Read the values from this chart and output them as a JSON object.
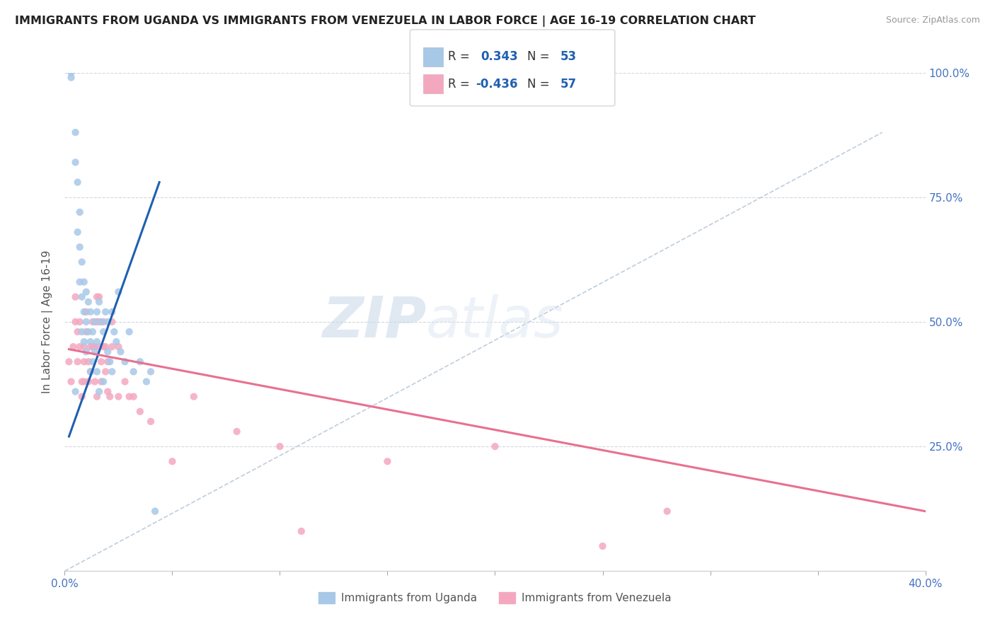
{
  "title": "IMMIGRANTS FROM UGANDA VS IMMIGRANTS FROM VENEZUELA IN LABOR FORCE | AGE 16-19 CORRELATION CHART",
  "source": "Source: ZipAtlas.com",
  "ylabel": "In Labor Force | Age 16-19",
  "xlim": [
    0.0,
    0.4
  ],
  "ylim": [
    0.0,
    1.0
  ],
  "uganda_R": 0.343,
  "uganda_N": 53,
  "venezuela_R": -0.436,
  "venezuela_N": 57,
  "uganda_color": "#a8c8e8",
  "venezuela_color": "#f4a8c0",
  "uganda_trend_color": "#2060b0",
  "venezuela_trend_color": "#e87090",
  "diagonal_color": "#b8c8d8",
  "watermark_zip": "ZIP",
  "watermark_atlas": "atlas",
  "uganda_x": [
    0.003,
    0.003,
    0.005,
    0.005,
    0.006,
    0.006,
    0.007,
    0.007,
    0.007,
    0.008,
    0.008,
    0.008,
    0.009,
    0.009,
    0.009,
    0.01,
    0.01,
    0.01,
    0.011,
    0.011,
    0.012,
    0.012,
    0.012,
    0.013,
    0.013,
    0.014,
    0.014,
    0.015,
    0.015,
    0.015,
    0.016,
    0.016,
    0.017,
    0.018,
    0.018,
    0.019,
    0.02,
    0.02,
    0.021,
    0.022,
    0.022,
    0.023,
    0.024,
    0.025,
    0.026,
    0.028,
    0.03,
    0.032,
    0.035,
    0.038,
    0.04,
    0.042,
    0.005
  ],
  "uganda_y": [
    1.0,
    0.99,
    0.88,
    0.82,
    0.78,
    0.68,
    0.72,
    0.65,
    0.58,
    0.62,
    0.55,
    0.48,
    0.58,
    0.52,
    0.46,
    0.56,
    0.5,
    0.44,
    0.54,
    0.48,
    0.52,
    0.46,
    0.4,
    0.48,
    0.42,
    0.5,
    0.44,
    0.52,
    0.46,
    0.4,
    0.54,
    0.36,
    0.5,
    0.48,
    0.38,
    0.52,
    0.5,
    0.44,
    0.42,
    0.4,
    0.52,
    0.48,
    0.46,
    0.56,
    0.44,
    0.42,
    0.48,
    0.4,
    0.42,
    0.38,
    0.4,
    0.12,
    0.36
  ],
  "venezuela_x": [
    0.002,
    0.003,
    0.004,
    0.005,
    0.005,
    0.006,
    0.006,
    0.007,
    0.007,
    0.008,
    0.008,
    0.009,
    0.009,
    0.009,
    0.01,
    0.01,
    0.011,
    0.011,
    0.012,
    0.012,
    0.013,
    0.013,
    0.014,
    0.014,
    0.015,
    0.015,
    0.015,
    0.016,
    0.016,
    0.016,
    0.017,
    0.017,
    0.018,
    0.018,
    0.019,
    0.019,
    0.02,
    0.02,
    0.021,
    0.022,
    0.022,
    0.025,
    0.025,
    0.028,
    0.03,
    0.032,
    0.035,
    0.04,
    0.05,
    0.06,
    0.08,
    0.1,
    0.11,
    0.15,
    0.2,
    0.25,
    0.28
  ],
  "venezuela_y": [
    0.42,
    0.38,
    0.45,
    0.55,
    0.5,
    0.48,
    0.42,
    0.5,
    0.45,
    0.38,
    0.35,
    0.45,
    0.42,
    0.38,
    0.52,
    0.48,
    0.42,
    0.38,
    0.45,
    0.4,
    0.5,
    0.45,
    0.45,
    0.38,
    0.55,
    0.5,
    0.35,
    0.55,
    0.5,
    0.45,
    0.42,
    0.38,
    0.5,
    0.45,
    0.45,
    0.4,
    0.42,
    0.36,
    0.35,
    0.5,
    0.45,
    0.45,
    0.35,
    0.38,
    0.35,
    0.35,
    0.32,
    0.3,
    0.22,
    0.35,
    0.28,
    0.25,
    0.08,
    0.22,
    0.25,
    0.05,
    0.12
  ],
  "uganda_trend_x": [
    0.002,
    0.044
  ],
  "uganda_trend_y": [
    0.27,
    0.78
  ],
  "venezuela_trend_x": [
    0.002,
    0.4
  ],
  "venezuela_trend_y": [
    0.445,
    0.12
  ]
}
